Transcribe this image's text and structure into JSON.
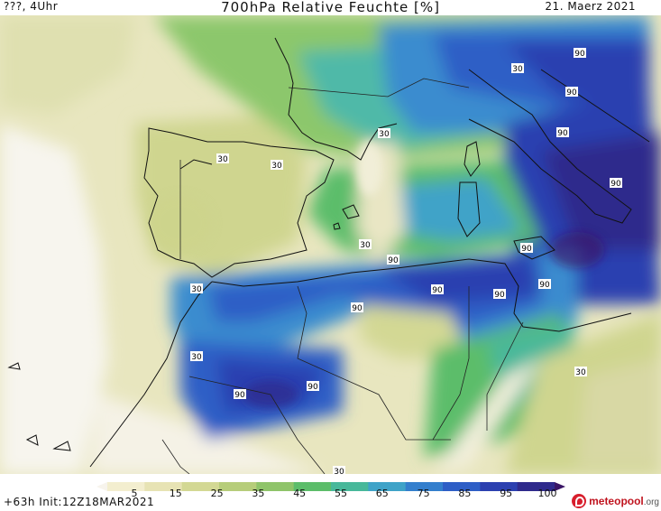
{
  "header": {
    "left": "???, 4Uhr",
    "title": "700hPa Relative Feuchte [%]",
    "date": "21. Maerz 2021"
  },
  "footer": {
    "init": "+63h  Init:12Z18MAR2021",
    "logo_name": "meteopool",
    "logo_suffix": ".org"
  },
  "legend": {
    "ticks": [
      "5",
      "15",
      "25",
      "35",
      "45",
      "55",
      "65",
      "75",
      "85",
      "95",
      "100"
    ],
    "colors": [
      "#f7f4ec",
      "#f3eecf",
      "#e7e3b4",
      "#d3d894",
      "#b6cd7a",
      "#8fc46a",
      "#5cbd6a",
      "#48b89a",
      "#3fa3c8",
      "#347fcd",
      "#2e5ec6",
      "#2c40b0",
      "#2f2a8c",
      "#3a1566"
    ]
  },
  "contour_labels": [
    {
      "text": "30",
      "name": "contour-label-30-iberia-north"
    },
    {
      "text": "30",
      "name": "contour-label-30-iberia-center"
    },
    {
      "text": "30",
      "name": "contour-label-30-corsica"
    },
    {
      "text": "30",
      "name": "contour-label-30-balearic"
    },
    {
      "text": "30",
      "name": "contour-label-30-gibraltar"
    },
    {
      "text": "30",
      "name": "contour-label-30-morocco"
    },
    {
      "text": "30",
      "name": "contour-label-30-sahara"
    },
    {
      "text": "30",
      "name": "contour-label-30-libya"
    },
    {
      "text": "30",
      "name": "contour-label-30-alps"
    },
    {
      "text": "90",
      "name": "contour-label-90-alps"
    },
    {
      "text": "90",
      "name": "contour-label-90-italy"
    },
    {
      "text": "90",
      "name": "contour-label-90-adriatic"
    },
    {
      "text": "90",
      "name": "contour-label-90-ionian"
    },
    {
      "text": "90",
      "name": "contour-label-90-sicily"
    },
    {
      "text": "90",
      "name": "contour-label-90-tunisia"
    },
    {
      "text": "90",
      "name": "contour-label-90-algeria-north"
    },
    {
      "text": "90",
      "name": "contour-label-90-algeria-east"
    },
    {
      "text": "90",
      "name": "contour-label-90-algeria-west"
    },
    {
      "text": "90",
      "name": "contour-label-90-atlas"
    },
    {
      "text": "90",
      "name": "contour-label-90-sahara-west"
    },
    {
      "text": "90",
      "name": "contour-label-90-sahara-east"
    }
  ]
}
